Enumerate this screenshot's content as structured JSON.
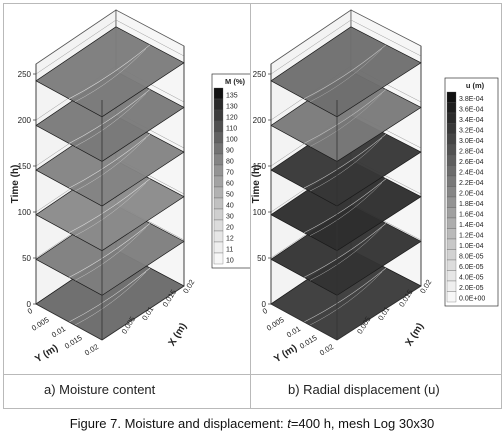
{
  "figure": {
    "caption_prefix": "Figure 7. Moisture and displacement: ",
    "caption_var": "t",
    "caption_suffix": "=400 h, mesh Log 30x30"
  },
  "panels": [
    {
      "caption": "a) Moisture content",
      "legend_title": "M (%)",
      "legend_labels": [
        "135",
        "130",
        "120",
        "110",
        "100",
        "90",
        "80",
        "70",
        "60",
        "50",
        "40",
        "30",
        "20",
        "12",
        "11",
        "10"
      ],
      "legend_shades": [
        "#111111",
        "#2a2a2a",
        "#3d3d3d",
        "#505050",
        "#626262",
        "#737373",
        "#848484",
        "#949494",
        "#a3a3a3",
        "#b2b2b2",
        "#c1c1c1",
        "#cfcfcf",
        "#dcdcdc",
        "#e6e6e6",
        "#efefef",
        "#f7f7f7"
      ],
      "y_axis_label": "Time (h)",
      "y_ticks": [
        "0",
        "50",
        "100",
        "150",
        "200",
        "250"
      ],
      "yaxis_label": "Y (m)",
      "xaxis_label": "X (m)",
      "left_ticks": [
        "0",
        "0.005",
        "0.01",
        "0.015",
        "0.02"
      ],
      "right_ticks": [
        "0.005",
        "0.01",
        "0.015",
        "0.02"
      ],
      "layer_shades": [
        "#6a6a6a",
        "#7e7e7e",
        "#8a8a8a",
        "#838383",
        "#7a7a7a",
        "#7c7c7c"
      ]
    },
    {
      "caption": "b) Radial displacement (u)",
      "legend_title": "u (m)",
      "legend_labels": [
        "3.8E-04",
        "3.6E-04",
        "3.4E-04",
        "3.2E-04",
        "3.0E-04",
        "2.8E-04",
        "2.6E-04",
        "2.4E-04",
        "2.2E-04",
        "2.0E-04",
        "1.8E-04",
        "1.6E-04",
        "1.4E-04",
        "1.2E-04",
        "1.0E-04",
        "8.0E-05",
        "6.0E-05",
        "4.0E-05",
        "2.0E-05",
        "0.0E+00"
      ],
      "legend_shades": [
        "#111111",
        "#1e1e1e",
        "#2b2b2b",
        "#383838",
        "#454545",
        "#525252",
        "#5f5f5f",
        "#6c6c6c",
        "#797979",
        "#868686",
        "#939393",
        "#a0a0a0",
        "#adadad",
        "#bababa",
        "#c7c7c7",
        "#d2d2d2",
        "#dcdcdc",
        "#e6e6e6",
        "#efefef",
        "#f7f7f7"
      ],
      "y_axis_label": "Time (h)",
      "y_ticks": [
        "0",
        "50",
        "100",
        "150",
        "200",
        "250"
      ],
      "yaxis_label": "Y (m)",
      "xaxis_label": "X (m)",
      "left_ticks": [
        "0",
        "0.005",
        "0.01",
        "0.015",
        "0.02"
      ],
      "right_ticks": [
        "0.005",
        "0.01",
        "0.015",
        "0.02"
      ],
      "layer_shades": [
        "#3a3a3a",
        "#333333",
        "#2e2e2e",
        "#363636",
        "#7a7a7a",
        "#6e6e6e"
      ]
    }
  ]
}
